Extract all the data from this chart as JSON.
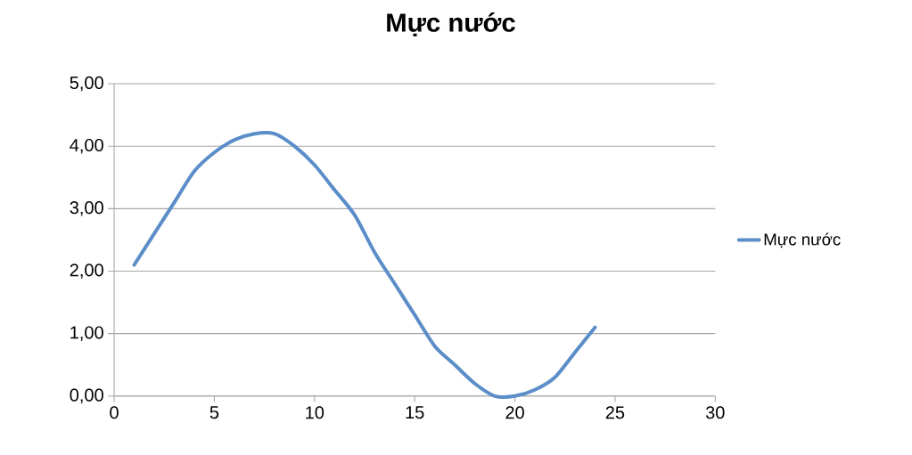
{
  "chart_data": {
    "type": "line",
    "title": "Mực nước",
    "x": [
      1,
      2,
      3,
      4,
      5,
      6,
      7,
      8,
      9,
      10,
      11,
      12,
      13,
      14,
      15,
      16,
      17,
      18,
      19,
      20,
      21,
      22,
      23,
      24
    ],
    "series": [
      {
        "name": "Mực nước",
        "color": "#5b8ec8",
        "values": [
          2.1,
          2.6,
          3.1,
          3.6,
          3.9,
          4.1,
          4.2,
          4.2,
          4.0,
          3.7,
          3.3,
          2.9,
          2.3,
          1.8,
          1.3,
          0.8,
          0.5,
          0.2,
          0.0,
          0.0,
          0.1,
          0.3,
          0.7,
          1.1
        ]
      }
    ],
    "xlim": [
      0,
      30
    ],
    "xticks": [
      0,
      5,
      10,
      15,
      20,
      25,
      30
    ],
    "ylim": [
      0,
      5
    ],
    "yticks": [
      {
        "value": 0,
        "label": "0,00"
      },
      {
        "value": 1,
        "label": "1,00"
      },
      {
        "value": 2,
        "label": "2,00"
      },
      {
        "value": 3,
        "label": "3,00"
      },
      {
        "value": 4,
        "label": "4,00"
      },
      {
        "value": 5,
        "label": "5,00"
      }
    ],
    "grid": "y",
    "legend": "right",
    "marker": "none",
    "line_style": "solid"
  }
}
